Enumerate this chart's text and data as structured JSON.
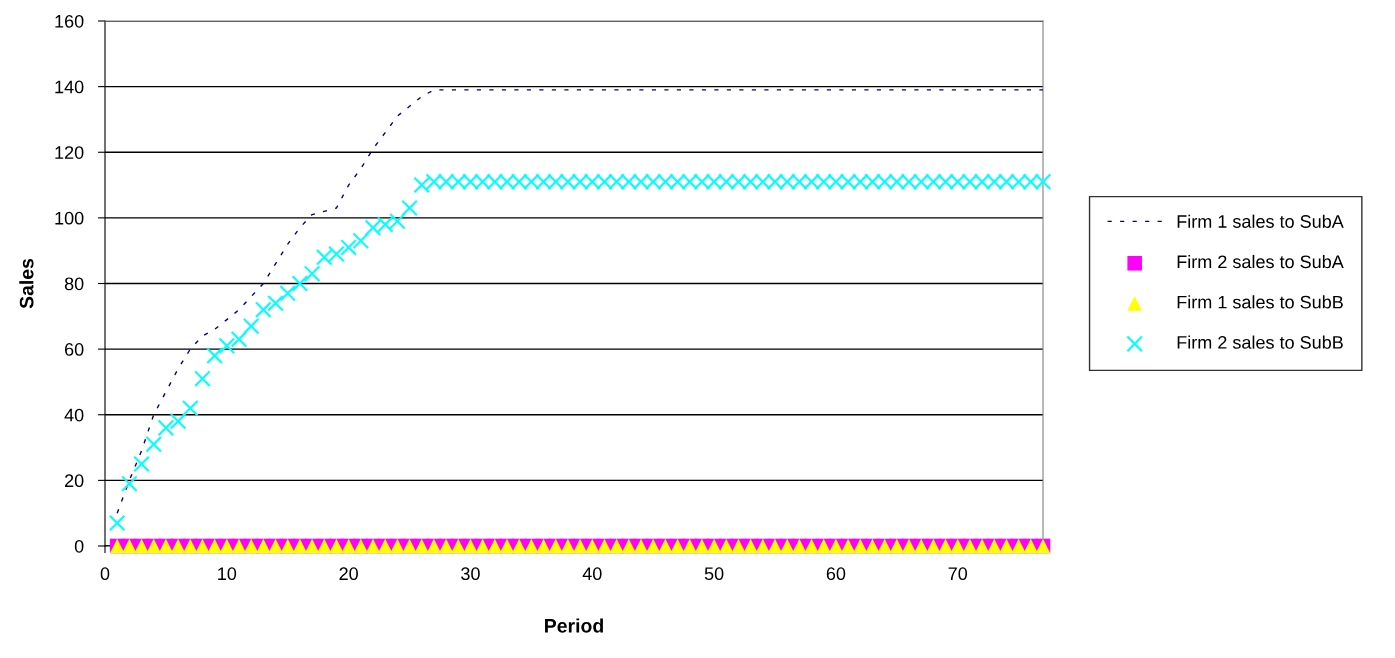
{
  "chart_data": {
    "type": "scatter",
    "xlabel": "Period",
    "ylabel": "Sales",
    "xlim": [
      0,
      77
    ],
    "ylim": [
      0,
      160
    ],
    "xticks": [
      0,
      10,
      20,
      30,
      40,
      50,
      60,
      70
    ],
    "yticks": [
      0,
      20,
      40,
      60,
      80,
      100,
      120,
      140,
      160
    ],
    "grid": "y",
    "legend": "right",
    "x": [
      1,
      2,
      3,
      4,
      5,
      6,
      7,
      8,
      9,
      10,
      11,
      12,
      13,
      14,
      15,
      16,
      17,
      18,
      19,
      20,
      21,
      22,
      23,
      24,
      25,
      26,
      27,
      28,
      29,
      30,
      31,
      32,
      33,
      34,
      35,
      36,
      37,
      38,
      39,
      40,
      41,
      42,
      43,
      44,
      45,
      46,
      47,
      48,
      49,
      50,
      51,
      52,
      53,
      54,
      55,
      56,
      57,
      58,
      59,
      60,
      61,
      62,
      63,
      64,
      65,
      66,
      67,
      68,
      69,
      70,
      71,
      72,
      73,
      74,
      75,
      76,
      77
    ],
    "series": [
      {
        "name": "Firm 1 sales to SubA",
        "type": "line",
        "line_style": "dashed",
        "marker": "none",
        "color": "#000080",
        "values": [
          10,
          20,
          29,
          40,
          47,
          54,
          60,
          64,
          66,
          69,
          72,
          76,
          80,
          86,
          92,
          97,
          101,
          102,
          103,
          110,
          115,
          121,
          126,
          131,
          134,
          137,
          139,
          139,
          139,
          139,
          139,
          139,
          139,
          139,
          139,
          139,
          139,
          139,
          139,
          139,
          139,
          139,
          139,
          139,
          139,
          139,
          139,
          139,
          139,
          139,
          139,
          139,
          139,
          139,
          139,
          139,
          139,
          139,
          139,
          139,
          139,
          139,
          139,
          139,
          139,
          139,
          139,
          139,
          139,
          139,
          139,
          139,
          139,
          139,
          139,
          139,
          139
        ]
      },
      {
        "name": "Firm 2 sales to SubA",
        "marker": "square",
        "color": "#ff00ff",
        "values": [
          0,
          0,
          0,
          0,
          0,
          0,
          0,
          0,
          0,
          0,
          0,
          0,
          0,
          0,
          0,
          0,
          0,
          0,
          0,
          0,
          0,
          0,
          0,
          0,
          0,
          0,
          0,
          0,
          0,
          0,
          0,
          0,
          0,
          0,
          0,
          0,
          0,
          0,
          0,
          0,
          0,
          0,
          0,
          0,
          0,
          0,
          0,
          0,
          0,
          0,
          0,
          0,
          0,
          0,
          0,
          0,
          0,
          0,
          0,
          0,
          0,
          0,
          0,
          0,
          0,
          0,
          0,
          0,
          0,
          0,
          0,
          0,
          0,
          0,
          0,
          0,
          0
        ]
      },
      {
        "name": "Firm 1 sales to SubB",
        "marker": "triangle",
        "color": "#ffff00",
        "values": [
          0,
          0,
          0,
          0,
          0,
          0,
          0,
          0,
          0,
          0,
          0,
          0,
          0,
          0,
          0,
          0,
          0,
          0,
          0,
          0,
          0,
          0,
          0,
          0,
          0,
          0,
          0,
          0,
          0,
          0,
          0,
          0,
          0,
          0,
          0,
          0,
          0,
          0,
          0,
          0,
          0,
          0,
          0,
          0,
          0,
          0,
          0,
          0,
          0,
          0,
          0,
          0,
          0,
          0,
          0,
          0,
          0,
          0,
          0,
          0,
          0,
          0,
          0,
          0,
          0,
          0,
          0,
          0,
          0,
          0,
          0,
          0,
          0,
          0,
          0,
          0,
          0
        ]
      },
      {
        "name": "Firm 2 sales to SubB",
        "marker": "cross",
        "color": "#00ffff",
        "values": [
          7,
          19,
          25,
          31,
          36,
          38,
          42,
          51,
          58,
          61,
          63,
          67,
          72,
          74,
          77,
          80,
          83,
          88,
          89,
          91,
          93,
          97,
          98,
          99,
          103,
          110,
          111,
          111,
          111,
          111,
          111,
          111,
          111,
          111,
          111,
          111,
          111,
          111,
          111,
          111,
          111,
          111,
          111,
          111,
          111,
          111,
          111,
          111,
          111,
          111,
          111,
          111,
          111,
          111,
          111,
          111,
          111,
          111,
          111,
          111,
          111,
          111,
          111,
          111,
          111,
          111,
          111,
          111,
          111,
          111,
          111,
          111,
          111,
          111,
          111,
          111,
          111
        ]
      }
    ]
  }
}
